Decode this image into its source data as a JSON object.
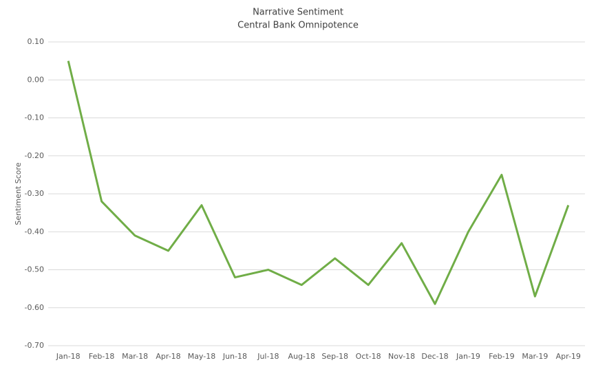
{
  "chart_data": {
    "type": "line",
    "title": "Narrative Sentiment",
    "subtitle": "Central Bank Omnipotence",
    "y_label": "Sentiment Score",
    "categories": [
      "Jan-18",
      "Feb-18",
      "Mar-18",
      "Apr-18",
      "May-18",
      "Jun-18",
      "Jul-18",
      "Aug-18",
      "Sep-18",
      "Oct-18",
      "Nov-18",
      "Dec-18",
      "Jan-19",
      "Feb-19",
      "Mar-19",
      "Apr-19"
    ],
    "series": [
      {
        "name": "Sentiment Score",
        "color": "#70ad47",
        "values": [
          0.05,
          -0.32,
          -0.41,
          -0.45,
          -0.33,
          -0.52,
          -0.5,
          -0.54,
          -0.47,
          -0.54,
          -0.43,
          -0.59,
          -0.4,
          -0.25,
          -0.57,
          -0.33
        ]
      }
    ],
    "ylim": [
      -0.7,
      0.1
    ],
    "yticks": [
      {
        "value": 0.1,
        "label": "0.10"
      },
      {
        "value": 0,
        "label": "0.00"
      },
      {
        "value": -0.1,
        "label": "-0.10"
      },
      {
        "value": -0.2,
        "label": "-0.20"
      },
      {
        "value": -0.3,
        "label": "-0.30"
      },
      {
        "value": -0.4,
        "label": "-0.40"
      },
      {
        "value": -0.5,
        "label": "-0.50"
      },
      {
        "value": -0.6,
        "label": "-0.60"
      },
      {
        "value": -0.7,
        "label": "-0.70"
      }
    ],
    "grid": true
  }
}
